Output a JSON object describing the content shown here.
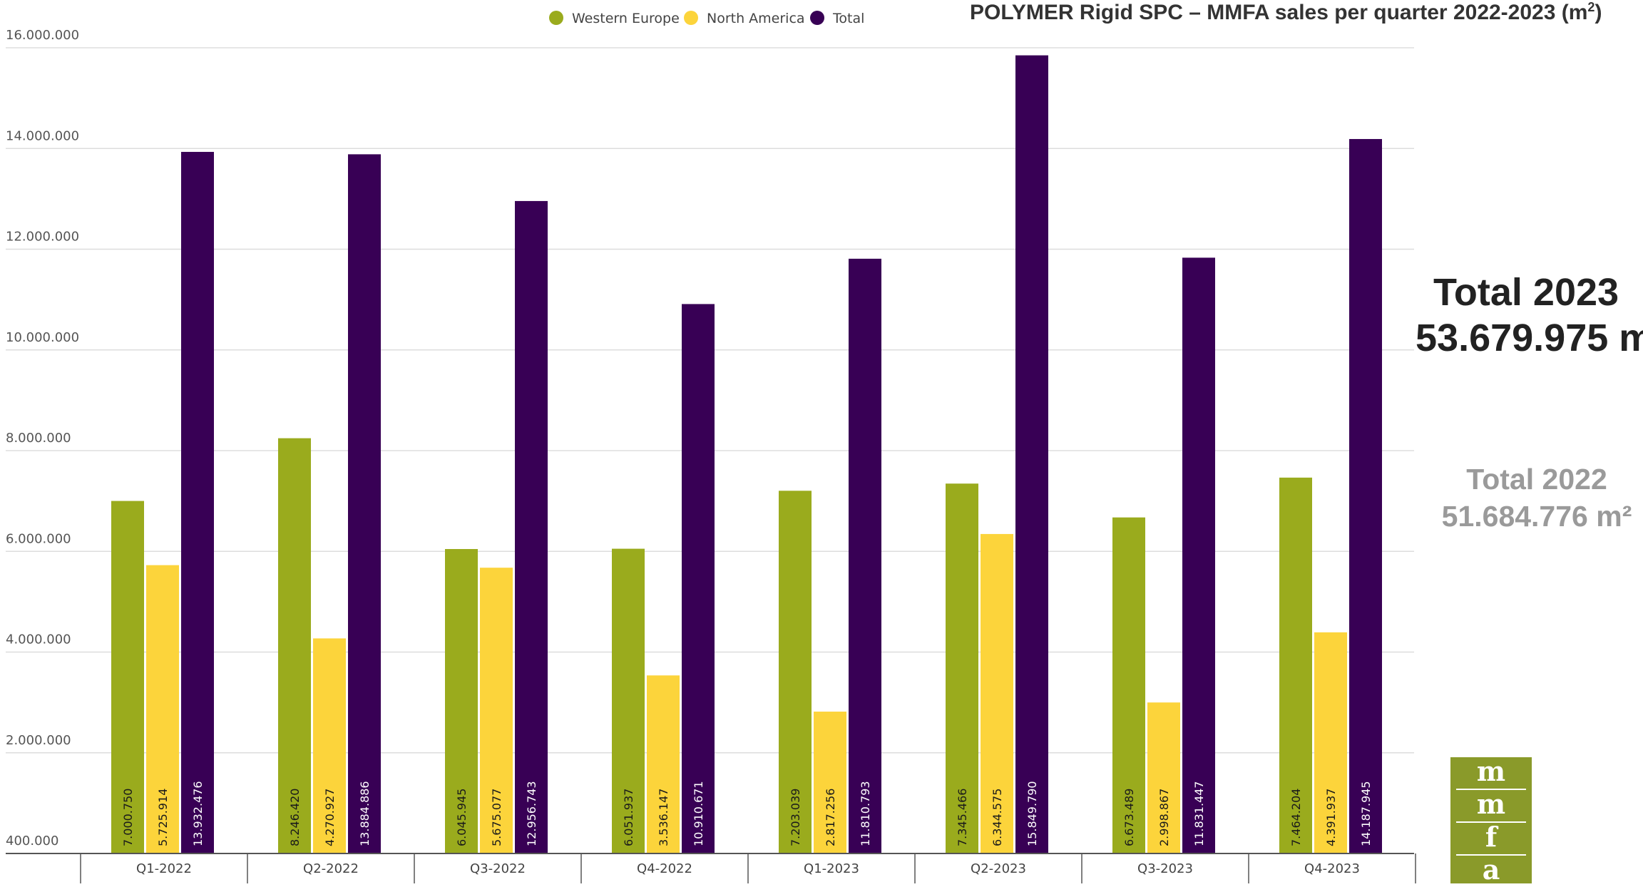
{
  "title": {
    "text": "POLYMER Rigid SPC – MMFA sales per quarter 2022-2023 (m",
    "sup": "2",
    "close": ")"
  },
  "totals": {
    "y2023_label": "Total 2023",
    "y2023_value": "53.679.975 m",
    "y2022_label": "Total 2022",
    "y2022_value": "51.684.776 m²"
  },
  "logo": {
    "letters": [
      "m",
      "m",
      "f",
      "a"
    ],
    "color": "#8a9a2a"
  },
  "chart_data": {
    "type": "bar",
    "categories": [
      "Q1-2022",
      "Q2-2022",
      "Q3-2022",
      "Q4-2022",
      "Q1-2023",
      "Q2-2023",
      "Q3-2023",
      "Q4-2023"
    ],
    "series": [
      {
        "name": "Western Europe",
        "color": "#9aab1d",
        "label_color": "#1a1a1a",
        "values": [
          7000750,
          8246420,
          6045945,
          6051937,
          7203039,
          7345466,
          6673489,
          7464204
        ],
        "labels": [
          "7.000.750",
          "8.246.420",
          "6.045.945",
          "6.051.937",
          "7.203.039",
          "7.345.466",
          "6.673.489",
          "7.464.204"
        ]
      },
      {
        "name": "North America",
        "color": "#fcd43b",
        "label_color": "#1a1a1a",
        "values": [
          5725914,
          4270927,
          5675077,
          3536147,
          2817256,
          6344575,
          2998867,
          4391937
        ],
        "labels": [
          "5.725.914",
          "4.270.927",
          "5.675.077",
          "3.536.147",
          "2.817.256",
          "6.344.575",
          "2.998.867",
          "4.391.937"
        ]
      },
      {
        "name": "Total",
        "color": "#380055",
        "label_color": "#ffffff",
        "values": [
          13932476,
          13884886,
          12956743,
          10910671,
          11810793,
          15849790,
          11831447,
          14187945
        ],
        "labels": [
          "13.932.476",
          "13.884.886",
          "12.956.743",
          "10.910.671",
          "11.810.793",
          "15.849.790",
          "11.831.447",
          "14.187.945"
        ]
      }
    ],
    "yticks": [
      400000,
      2000000,
      4000000,
      6000000,
      8000000,
      10000000,
      12000000,
      14000000,
      16000000
    ],
    "ytick_labels": [
      "400.000",
      "2.000.000",
      "4.000.000",
      "6.000.000",
      "8.000.000",
      "10.000.000",
      "12.000.000",
      "14.000.000",
      "16.000.000"
    ],
    "ylim": [
      0,
      16000000
    ],
    "grid": true,
    "legend_position": "top-center"
  }
}
